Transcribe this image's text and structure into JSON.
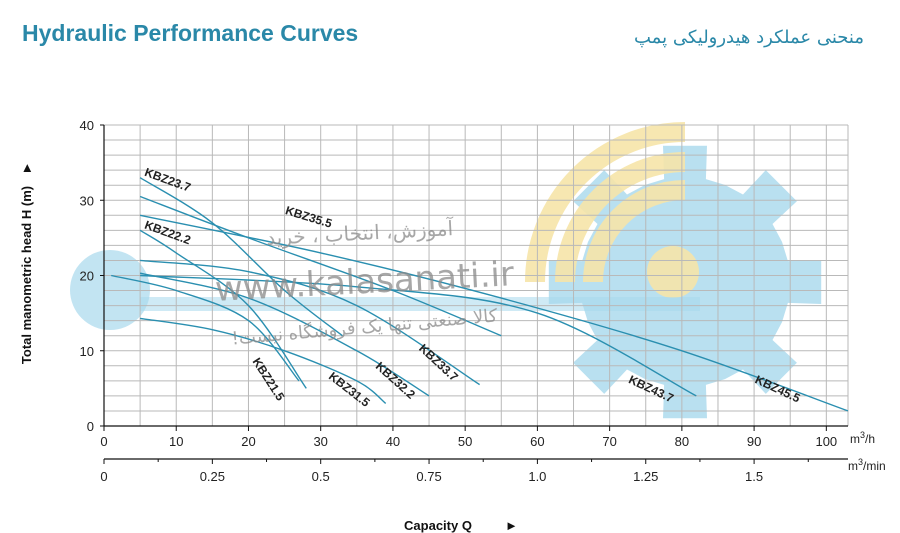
{
  "header": {
    "title_en": "Hydraulic Performance Curves",
    "title_fa": "منحنی عملکرد هیدرولیکی پمپ"
  },
  "watermark": {
    "line1": "آموزش، انتخاب ، خرید",
    "url": "www.kalasanati.ir",
    "line2": "کالا صنعتی تنها یک فروشگاه نیست!"
  },
  "colors": {
    "curve": "#2a8fb0",
    "grid": "#b9b9b9",
    "gear": "#a8d8ec",
    "arcs": "#f6e4a8"
  },
  "chart_data": {
    "type": "line",
    "title": "Hydraulic Performance Curves",
    "ylabel": "Total manometric head H (m)",
    "xlabel": "Capacity Q",
    "x_unit": "m³/h",
    "x2_unit": "m³/min",
    "xlim": [
      0,
      103
    ],
    "ylim": [
      0,
      40
    ],
    "x_ticks": [
      0,
      10,
      20,
      30,
      40,
      50,
      60,
      70,
      80,
      90,
      100
    ],
    "y_ticks": [
      0,
      10,
      20,
      30,
      40
    ],
    "x2_ticks": [
      {
        "value": 0,
        "label": "0"
      },
      {
        "value": 0.25,
        "label": "0.25"
      },
      {
        "value": 0.5,
        "label": "0.5"
      },
      {
        "value": 0.75,
        "label": "0.75"
      },
      {
        "value": 1.0,
        "label": "1.0"
      },
      {
        "value": 1.25,
        "label": "1.25"
      },
      {
        "value": 1.5,
        "label": "1.5"
      }
    ],
    "grid": true,
    "series": [
      {
        "name": "KBZ21.5",
        "points": [
          [
            1,
            20
          ],
          [
            10,
            18
          ],
          [
            20,
            14
          ],
          [
            27,
            6
          ]
        ]
      },
      {
        "name": "KBZ31.5",
        "points": [
          [
            5,
            14.3
          ],
          [
            15,
            12.8
          ],
          [
            25,
            10
          ],
          [
            35,
            6
          ],
          [
            39,
            3
          ]
        ]
      },
      {
        "name": "KBZ22.2",
        "points": [
          [
            5,
            26
          ],
          [
            10,
            23
          ],
          [
            20,
            16
          ],
          [
            28,
            5
          ]
        ]
      },
      {
        "name": "KBZ32.2",
        "points": [
          [
            5,
            20.3
          ],
          [
            20,
            17
          ],
          [
            35,
            10
          ],
          [
            45,
            4
          ]
        ]
      },
      {
        "name": "KBZ33.7",
        "points": [
          [
            5,
            22
          ],
          [
            20,
            20.5
          ],
          [
            35,
            16
          ],
          [
            52,
            5.5
          ]
        ]
      },
      {
        "name": "KBZ23.7",
        "points": [
          [
            5,
            33
          ],
          [
            15,
            27
          ],
          [
            25,
            18
          ],
          [
            33,
            12
          ]
        ]
      },
      {
        "name": "KBZ35.5",
        "points": [
          [
            5,
            30.5
          ],
          [
            20,
            25
          ],
          [
            40,
            18
          ],
          [
            55,
            12
          ]
        ]
      },
      {
        "name": "KBZ43.7",
        "points": [
          [
            5,
            20
          ],
          [
            35,
            18.5
          ],
          [
            60,
            15
          ],
          [
            82,
            4
          ]
        ]
      },
      {
        "name": "KBZ45.5",
        "points": [
          [
            5,
            28
          ],
          [
            30,
            23
          ],
          [
            55,
            17
          ],
          [
            80,
            10
          ],
          [
            103,
            2
          ]
        ]
      }
    ],
    "labels": [
      {
        "series": "KBZ23.7",
        "x": 5.5,
        "y": 33.3,
        "angle": 20
      },
      {
        "series": "KBZ35.5",
        "x": 25,
        "y": 28.2,
        "angle": 17
      },
      {
        "series": "KBZ22.2",
        "x": 5.5,
        "y": 26.3,
        "angle": 20
      },
      {
        "series": "KBZ21.5",
        "x": 20.5,
        "y": 8.6,
        "angle": 57
      },
      {
        "series": "KBZ31.5",
        "x": 31,
        "y": 6.4,
        "angle": 38
      },
      {
        "series": "KBZ32.2",
        "x": 37.5,
        "y": 7.8,
        "angle": 42
      },
      {
        "series": "KBZ33.7",
        "x": 43.5,
        "y": 10.2,
        "angle": 43
      },
      {
        "series": "KBZ43.7",
        "x": 72.5,
        "y": 5.8,
        "angle": 25
      },
      {
        "series": "KBZ45.5",
        "x": 90,
        "y": 5.8,
        "angle": 25
      }
    ]
  }
}
